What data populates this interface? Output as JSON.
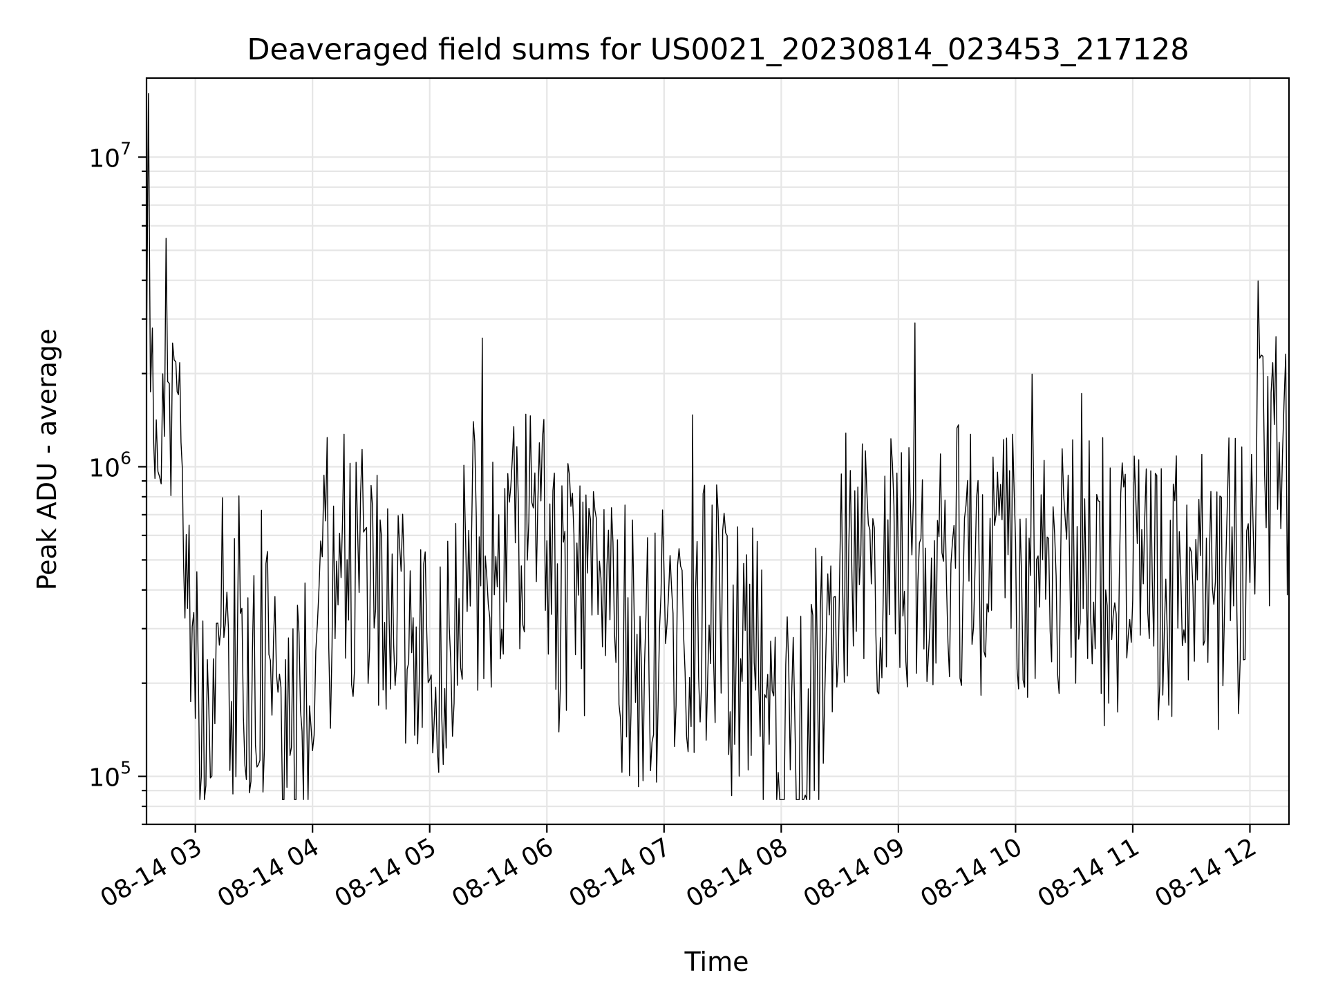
{
  "chart_data": {
    "type": "line",
    "title": "Deaveraged field sums for US0021_20230814_023453_217128",
    "xlabel": "Time",
    "ylabel": "Peak ADU - average",
    "yscale": "log",
    "grid": "on",
    "x_ticks": [
      {
        "value": "2023-08-14T03:00",
        "label": "08-14 03"
      },
      {
        "value": "2023-08-14T04:00",
        "label": "08-14 04"
      },
      {
        "value": "2023-08-14T05:00",
        "label": "08-14 05"
      },
      {
        "value": "2023-08-14T06:00",
        "label": "08-14 06"
      },
      {
        "value": "2023-08-14T07:00",
        "label": "08-14 07"
      },
      {
        "value": "2023-08-14T08:00",
        "label": "08-14 08"
      },
      {
        "value": "2023-08-14T09:00",
        "label": "08-14 09"
      },
      {
        "value": "2023-08-14T10:00",
        "label": "08-14 10"
      },
      {
        "value": "2023-08-14T11:00",
        "label": "08-14 11"
      },
      {
        "value": "2023-08-14T12:00",
        "label": "08-14 12"
      }
    ],
    "y_ticks": [
      {
        "value": 100000,
        "base": "10",
        "exponent": "5"
      },
      {
        "value": 1000000,
        "base": "10",
        "exponent": "6"
      },
      {
        "value": 10000000,
        "base": "10",
        "exponent": "7"
      }
    ],
    "xlim": [
      "2023-08-14T02:35",
      "2023-08-14T12:20"
    ],
    "ylim": [
      70000,
      18000000
    ],
    "series": [
      {
        "color": "#000000",
        "x": [
          "2023-08-14T02:35",
          "2023-08-14T02:36",
          "2023-08-14T02:37",
          "2023-08-14T02:38",
          "2023-08-14T02:40",
          "2023-08-14T02:45",
          "2023-08-14T02:50",
          "2023-08-14T02:52",
          "2023-08-14T02:54",
          "2023-08-14T02:56",
          "2023-08-14T03:00",
          "2023-08-14T03:10",
          "2023-08-14T03:20",
          "2023-08-14T03:30",
          "2023-08-14T03:40",
          "2023-08-14T03:50",
          "2023-08-14T04:00",
          "2023-08-14T04:05",
          "2023-08-14T04:10",
          "2023-08-14T04:20",
          "2023-08-14T04:30",
          "2023-08-14T04:40",
          "2023-08-14T04:50",
          "2023-08-14T05:00",
          "2023-08-14T05:10",
          "2023-08-14T05:15",
          "2023-08-14T05:20",
          "2023-08-14T05:30",
          "2023-08-14T05:40",
          "2023-08-14T05:50",
          "2023-08-14T06:00",
          "2023-08-14T06:10",
          "2023-08-14T06:20",
          "2023-08-14T06:30",
          "2023-08-14T06:40",
          "2023-08-14T06:50",
          "2023-08-14T07:00",
          "2023-08-14T07:10",
          "2023-08-14T07:20",
          "2023-08-14T07:30",
          "2023-08-14T07:40",
          "2023-08-14T07:50",
          "2023-08-14T08:00",
          "2023-08-14T08:10",
          "2023-08-14T08:20",
          "2023-08-14T08:30",
          "2023-08-14T08:40",
          "2023-08-14T08:50",
          "2023-08-14T09:00",
          "2023-08-14T09:10",
          "2023-08-14T09:20",
          "2023-08-14T09:30",
          "2023-08-14T09:40",
          "2023-08-14T09:50",
          "2023-08-14T10:00",
          "2023-08-14T10:10",
          "2023-08-14T10:20",
          "2023-08-14T10:30",
          "2023-08-14T10:40",
          "2023-08-14T10:50",
          "2023-08-14T11:00",
          "2023-08-14T11:10",
          "2023-08-14T11:20",
          "2023-08-14T11:30",
          "2023-08-14T11:40",
          "2023-08-14T11:50",
          "2023-08-14T11:55",
          "2023-08-14T12:00",
          "2023-08-14T12:05",
          "2023-08-14T12:10",
          "2023-08-14T12:15",
          "2023-08-14T12:20"
        ],
        "y": [
          4000000,
          12000000,
          2500000,
          1600000,
          1500000,
          1450000,
          1400000,
          1500000,
          700000,
          350000,
          200000,
          170000,
          250000,
          210000,
          190000,
          180000,
          230000,
          500000,
          420000,
          480000,
          500000,
          400000,
          270000,
          240000,
          230000,
          300000,
          600000,
          400000,
          550000,
          650000,
          500000,
          400000,
          350000,
          300000,
          270000,
          250000,
          280000,
          320000,
          350000,
          300000,
          220000,
          200000,
          170000,
          150000,
          155000,
          480000,
          450000,
          520000,
          500000,
          470000,
          450000,
          480000,
          500000,
          520000,
          480000,
          470000,
          460000,
          440000,
          450000,
          430000,
          400000,
          380000,
          410000,
          420000,
          380000,
          360000,
          420000,
          820000,
          950000,
          1000000,
          1400000,
          900000
        ]
      }
    ]
  }
}
